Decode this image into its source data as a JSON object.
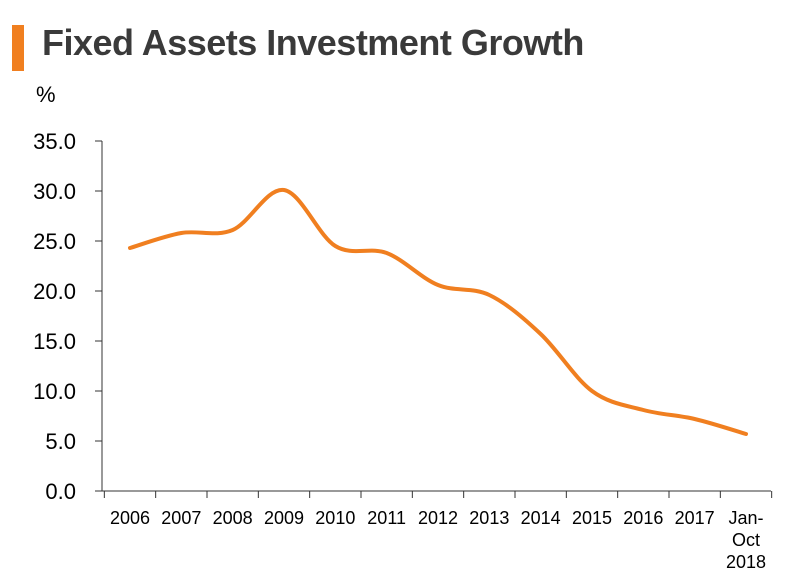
{
  "chart_data": {
    "type": "line",
    "title": "Fixed Assets Investment Growth",
    "ylabel": "%",
    "xlabel": "",
    "categories": [
      "2006",
      "2007",
      "2008",
      "2009",
      "2010",
      "2011",
      "2012",
      "2013",
      "2014",
      "2015",
      "2016",
      "2017",
      "Jan-Oct 2018"
    ],
    "category_lines": [
      [
        "2006"
      ],
      [
        "2007"
      ],
      [
        "2008"
      ],
      [
        "2009"
      ],
      [
        "2010"
      ],
      [
        "2011"
      ],
      [
        "2012"
      ],
      [
        "2013"
      ],
      [
        "2014"
      ],
      [
        "2015"
      ],
      [
        "2016"
      ],
      [
        "2017"
      ],
      [
        "Jan-",
        "Oct",
        "2018"
      ]
    ],
    "series": [
      {
        "name": "Fixed Assets Investment Growth",
        "color": "#f07f20",
        "values": [
          24.3,
          25.8,
          26.1,
          30.1,
          24.5,
          23.8,
          20.6,
          19.6,
          15.7,
          10.0,
          8.1,
          7.2,
          5.7
        ]
      }
    ],
    "ylim": [
      0,
      35
    ],
    "yticks": [
      "0.0",
      "5.0",
      "10.0",
      "15.0",
      "20.0",
      "25.0",
      "30.0",
      "35.0"
    ],
    "grid": false,
    "legend": "none"
  }
}
